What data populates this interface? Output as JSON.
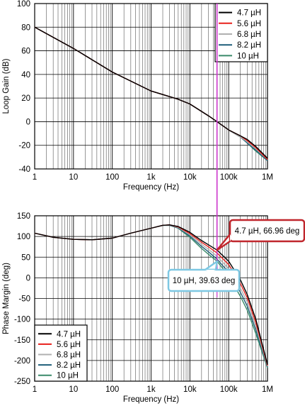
{
  "chart_data": [
    {
      "type": "line",
      "xscale": "log",
      "xlim": [
        1,
        1000000
      ],
      "ylim": [
        -40,
        100
      ],
      "xlabel": "Frequency (Hz)",
      "ylabel": "Loop Gain (dB)",
      "x_tick_labels": [
        "1",
        "10",
        "100",
        "1k",
        "10k",
        "100k",
        "1M"
      ],
      "y_ticks": [
        100,
        80,
        60,
        40,
        20,
        0,
        -20,
        -40
      ],
      "grid": true,
      "legend_position": "top-right",
      "series": [
        {
          "name": "4.7 µH",
          "color": "#000000",
          "x": [
            1,
            10,
            100,
            1000,
            5000,
            10000,
            30000,
            50000,
            100000,
            200000,
            300000,
            500000,
            1000000
          ],
          "y": [
            80,
            62,
            42,
            26,
            19,
            15,
            5,
            0,
            -7,
            -12,
            -15,
            -21,
            -31
          ]
        },
        {
          "name": "5.6 µH",
          "color": "#e8201c",
          "x": [
            1,
            10,
            100,
            1000,
            5000,
            10000,
            30000,
            50000,
            100000,
            200000,
            300000,
            500000,
            1000000
          ],
          "y": [
            80,
            62,
            42,
            26,
            19,
            15,
            5,
            0,
            -7,
            -12,
            -16,
            -22,
            -32
          ]
        },
        {
          "name": "6.8 µH",
          "color": "#b0b0b0",
          "x": [
            1,
            10,
            100,
            1000,
            5000,
            10000,
            30000,
            50000,
            100000,
            200000,
            300000,
            500000,
            1000000
          ],
          "y": [
            80,
            62,
            42,
            26,
            19,
            15,
            5,
            0,
            -7,
            -13,
            -17,
            -23,
            -32
          ]
        },
        {
          "name": "8.2 µH",
          "color": "#1f5f7a",
          "x": [
            1,
            10,
            100,
            1000,
            5000,
            10000,
            30000,
            50000,
            100000,
            200000,
            300000,
            500000,
            1000000
          ],
          "y": [
            80,
            62,
            42,
            26,
            19,
            15,
            5,
            0,
            -7,
            -13,
            -18,
            -24,
            -33
          ]
        },
        {
          "name": "10 µH",
          "color": "#3a8a6a",
          "x": [
            1,
            10,
            100,
            1000,
            5000,
            10000,
            30000,
            50000,
            100000,
            200000,
            300000,
            500000,
            1000000
          ],
          "y": [
            80,
            62,
            42,
            26,
            19,
            15,
            5,
            0,
            -7,
            -13,
            -18,
            -25,
            -33
          ]
        }
      ],
      "marker_x": 50000,
      "marker_color": "#cc33cc"
    },
    {
      "type": "line",
      "xscale": "log",
      "xlim": [
        1,
        1000000
      ],
      "ylim": [
        -250,
        150
      ],
      "xlabel": "Frequency (Hz)",
      "ylabel": "Phase Margin (deg)",
      "x_tick_labels": [
        "1",
        "10",
        "100",
        "1k",
        "10k",
        "100k",
        "1M"
      ],
      "y_ticks": [
        150,
        100,
        50,
        0,
        -50,
        -100,
        -150,
        -200,
        -250
      ],
      "grid": true,
      "legend_position": "bottom-left",
      "series": [
        {
          "name": "4.7 µH",
          "color": "#000000",
          "x": [
            1,
            3,
            10,
            30,
            100,
            300,
            1000,
            2000,
            3000,
            5000,
            10000,
            20000,
            30000,
            50000,
            100000,
            200000,
            300000,
            500000,
            1000000
          ],
          "y": [
            108,
            98,
            93,
            92,
            96,
            108,
            120,
            127,
            128,
            124,
            110,
            90,
            80,
            67,
            40,
            -5,
            -40,
            -100,
            -210
          ]
        },
        {
          "name": "5.6 µH",
          "color": "#e8201c",
          "x": [
            1,
            3,
            10,
            30,
            100,
            300,
            1000,
            2000,
            3000,
            5000,
            10000,
            20000,
            30000,
            50000,
            100000,
            200000,
            300000,
            500000,
            1000000
          ],
          "y": [
            108,
            98,
            93,
            92,
            96,
            108,
            120,
            127,
            128,
            123,
            107,
            86,
            75,
            60,
            32,
            -14,
            -48,
            -108,
            -212
          ]
        },
        {
          "name": "6.8 µH",
          "color": "#b0b0b0",
          "x": [
            1,
            3,
            10,
            30,
            100,
            300,
            1000,
            2000,
            3000,
            5000,
            10000,
            20000,
            30000,
            50000,
            100000,
            200000,
            300000,
            500000,
            1000000
          ],
          "y": [
            108,
            98,
            93,
            92,
            96,
            108,
            120,
            127,
            128,
            122,
            104,
            81,
            69,
            52,
            22,
            -25,
            -58,
            -117,
            -214
          ]
        },
        {
          "name": "8.2 µH",
          "color": "#1f5f7a",
          "x": [
            1,
            3,
            10,
            30,
            100,
            300,
            1000,
            2000,
            3000,
            5000,
            10000,
            20000,
            30000,
            50000,
            100000,
            200000,
            300000,
            500000,
            1000000
          ],
          "y": [
            108,
            98,
            93,
            92,
            96,
            108,
            120,
            127,
            127,
            121,
            101,
            76,
            63,
            45,
            13,
            -35,
            -68,
            -126,
            -216
          ]
        },
        {
          "name": "10 µH",
          "color": "#3a8a6a",
          "x": [
            1,
            3,
            10,
            30,
            100,
            300,
            1000,
            2000,
            3000,
            5000,
            10000,
            20000,
            30000,
            50000,
            100000,
            200000,
            300000,
            500000,
            1000000
          ],
          "y": [
            108,
            98,
            93,
            92,
            96,
            108,
            120,
            127,
            127,
            120,
            98,
            71,
            57,
            40,
            5,
            -45,
            -78,
            -135,
            -218
          ]
        }
      ],
      "marker_x": 50000,
      "marker_color": "#cc33cc",
      "annotations": [
        {
          "text": "4.7 µH, 66.96 deg",
          "x": 50000,
          "y": 66.96,
          "color": "#c0272d"
        },
        {
          "text": "10 µH, 39.63 deg",
          "x": 50000,
          "y": 39.63,
          "color": "#7ec8e3"
        }
      ]
    }
  ]
}
